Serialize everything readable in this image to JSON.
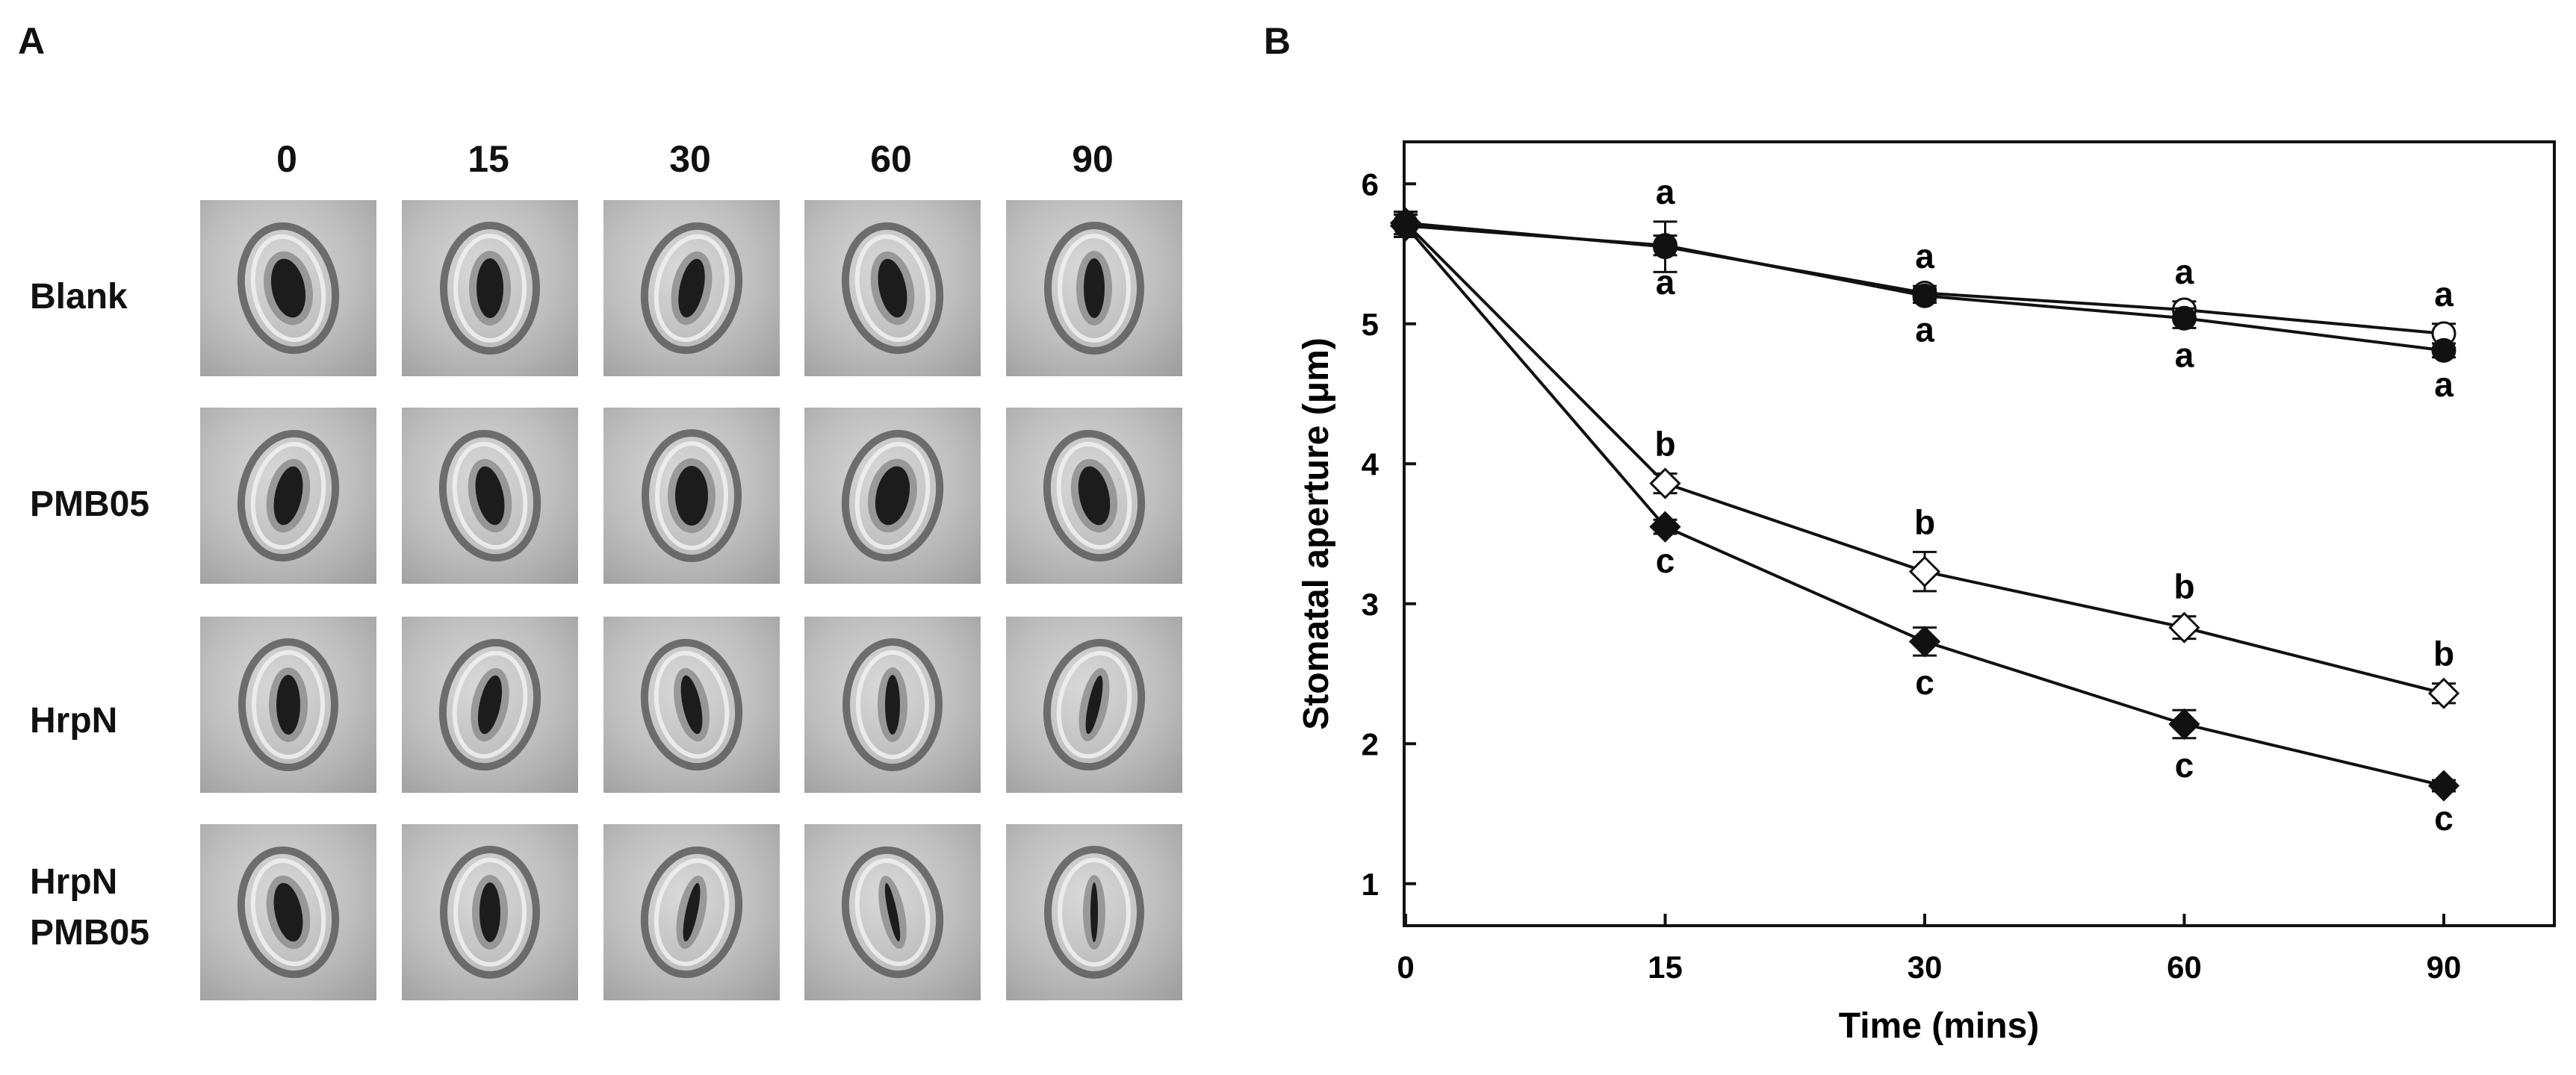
{
  "panel_a": {
    "letter": "A",
    "columns": [
      "0",
      "15",
      "30",
      "60",
      "90"
    ],
    "rows": [
      {
        "lines": [
          "Blank"
        ]
      },
      {
        "lines": [
          "PMB05"
        ]
      },
      {
        "lines": [
          "HrpN"
        ]
      },
      {
        "lines": [
          "HrpN",
          "PMB05"
        ]
      }
    ]
  },
  "panel_b": {
    "letter": "B"
  },
  "chart_data": {
    "type": "line",
    "xlabel": "Time (mins)",
    "ylabel": "Stomatal aperture  (μm)",
    "categories": [
      "0",
      "15",
      "30",
      "60",
      "90"
    ],
    "ylim": [
      0.7,
      6.3
    ],
    "yticks": [
      "1",
      "2",
      "3",
      "4",
      "5",
      "6"
    ],
    "grid": false,
    "legend": "none",
    "series": [
      {
        "marker": "open-circle",
        "values": [
          5.72,
          5.55,
          5.22,
          5.1,
          4.93
        ],
        "errors": [
          0.08,
          0.18,
          0.05,
          0.06,
          0.07
        ],
        "labels": [
          "",
          "a",
          "a",
          "a",
          "a"
        ],
        "label_pos": "above"
      },
      {
        "marker": "filled-circle",
        "values": [
          5.7,
          5.56,
          5.2,
          5.04,
          4.81
        ],
        "errors": [
          0.08,
          0.07,
          0.05,
          0.07,
          0.05
        ],
        "labels": [
          "",
          "a",
          "a",
          "a",
          "a"
        ],
        "label_pos": "below"
      },
      {
        "marker": "open-diamond",
        "values": [
          5.72,
          3.86,
          3.23,
          2.83,
          2.36
        ],
        "errors": [
          0.08,
          0.07,
          0.14,
          0.08,
          0.07
        ],
        "labels": [
          "",
          "b",
          "b",
          "b",
          "b"
        ],
        "label_pos": "above"
      },
      {
        "marker": "filled-diamond",
        "values": [
          5.7,
          3.55,
          2.73,
          2.14,
          1.7
        ],
        "errors": [
          0.08,
          0.05,
          0.1,
          0.1,
          0.04
        ],
        "labels": [
          "",
          "c",
          "c",
          "c",
          "c"
        ],
        "label_pos": "below"
      }
    ],
    "colors": {
      "line": "#111111",
      "open_fill": "#ffffff",
      "filled": "#111111"
    }
  }
}
